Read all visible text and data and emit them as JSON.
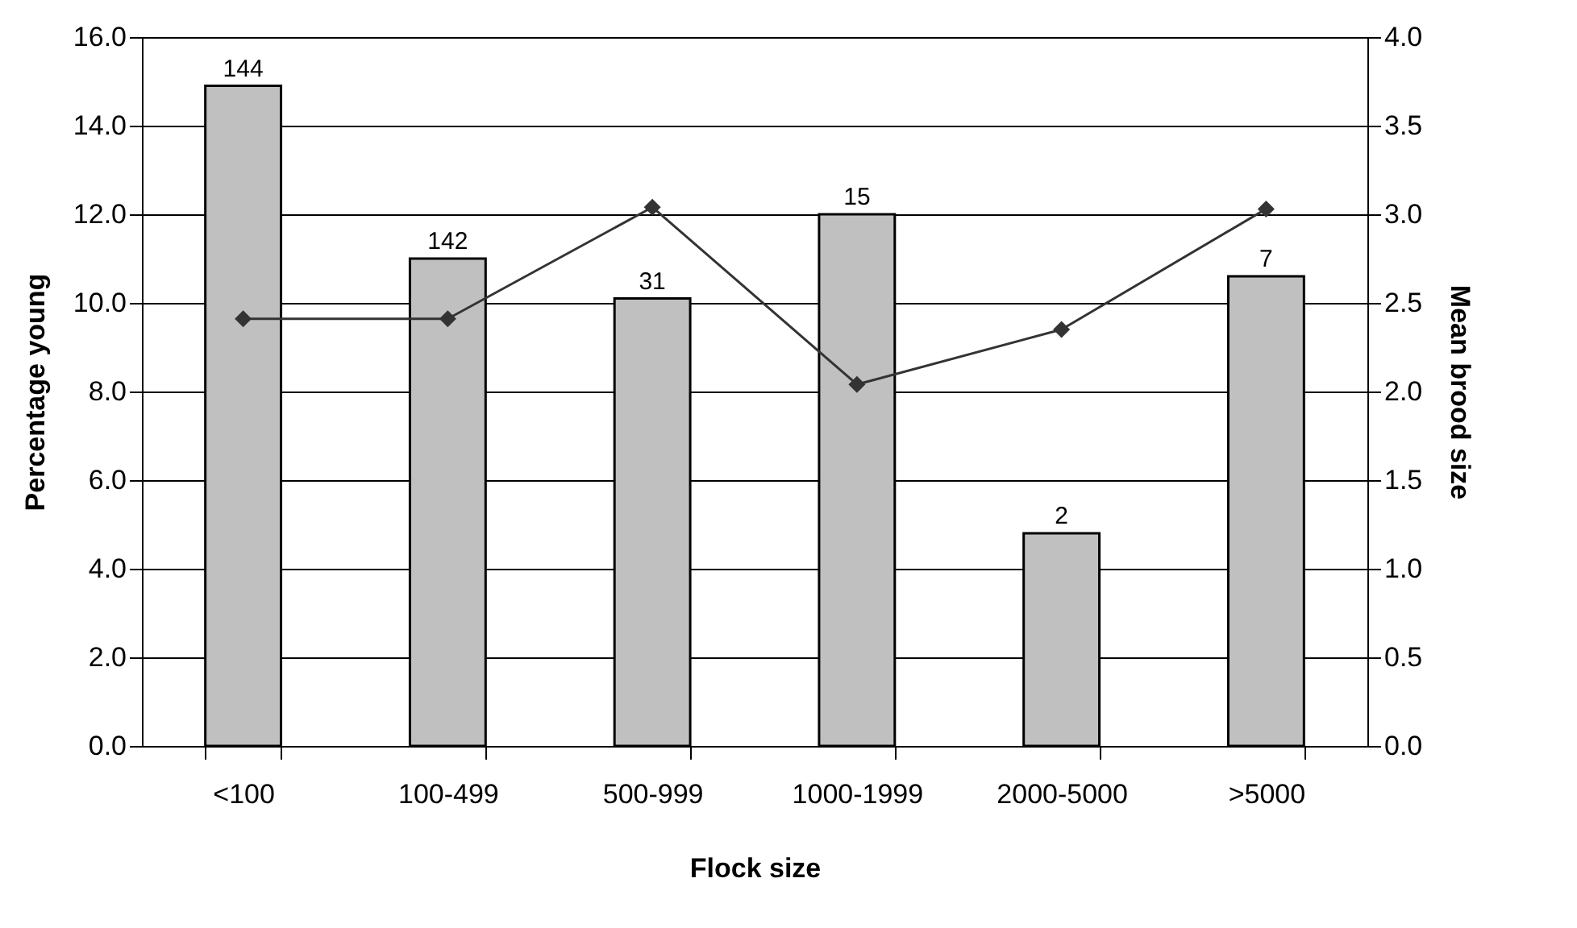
{
  "chart_data": {
    "type": "bar",
    "categories": [
      "<100",
      "100-499",
      "500-999",
      "1000-1999",
      "2000-5000",
      ">5000"
    ],
    "series": [
      {
        "color": "#c0c0c0",
        "values": [
          14.9,
          11.0,
          10.1,
          12.0,
          4.8,
          10.6
        ]
      },
      {
        "type": "line",
        "axis": "y2",
        "color": "#333333",
        "values": [
          2.41,
          2.41,
          3.04,
          2.04,
          2.35,
          3.03
        ]
      }
    ],
    "xlabel": "Flock size",
    "ylabel": "Percentage young",
    "y2label": "Mean brood size",
    "ylim": [
      0,
      16
    ],
    "yticks": [
      {
        "value": 0,
        "label": "0.0"
      },
      {
        "value": 2,
        "label": "2.0"
      },
      {
        "value": 4,
        "label": "4.0"
      },
      {
        "value": 6,
        "label": "6.0"
      },
      {
        "value": 8,
        "label": "8.0"
      },
      {
        "value": 10,
        "label": "10.0"
      },
      {
        "value": 12,
        "label": "12.0"
      },
      {
        "value": 14,
        "label": "14.0"
      },
      {
        "value": 16,
        "label": "16.0"
      }
    ],
    "y2lim": [
      0,
      4
    ],
    "y2ticks": [
      {
        "value": 0,
        "label": "0.0"
      },
      {
        "value": 0.5,
        "label": "0.5"
      },
      {
        "value": 1,
        "label": "1.0"
      },
      {
        "value": 1.5,
        "label": "1.5"
      },
      {
        "value": 2,
        "label": "2.0"
      },
      {
        "value": 2.5,
        "label": "2.5"
      },
      {
        "value": 3,
        "label": "3.0"
      },
      {
        "value": 3.5,
        "label": "3.5"
      },
      {
        "value": 4,
        "label": "4.0"
      }
    ],
    "annotations": [
      {
        "text": "144",
        "x": "<100",
        "y": 14.9
      },
      {
        "text": "142",
        "x": "100-499",
        "y": 11.0
      },
      {
        "text": "31",
        "x": "500-999",
        "y": 10.1
      },
      {
        "text": "15",
        "x": "1000-1999",
        "y": 12.0
      },
      {
        "text": "2",
        "x": "2000-5000",
        "y": 4.8
      },
      {
        "text": "7",
        "x": ">5000",
        "y": 10.6
      }
    ],
    "grid": "y",
    "marker": "diamond",
    "line_style": "solid"
  }
}
